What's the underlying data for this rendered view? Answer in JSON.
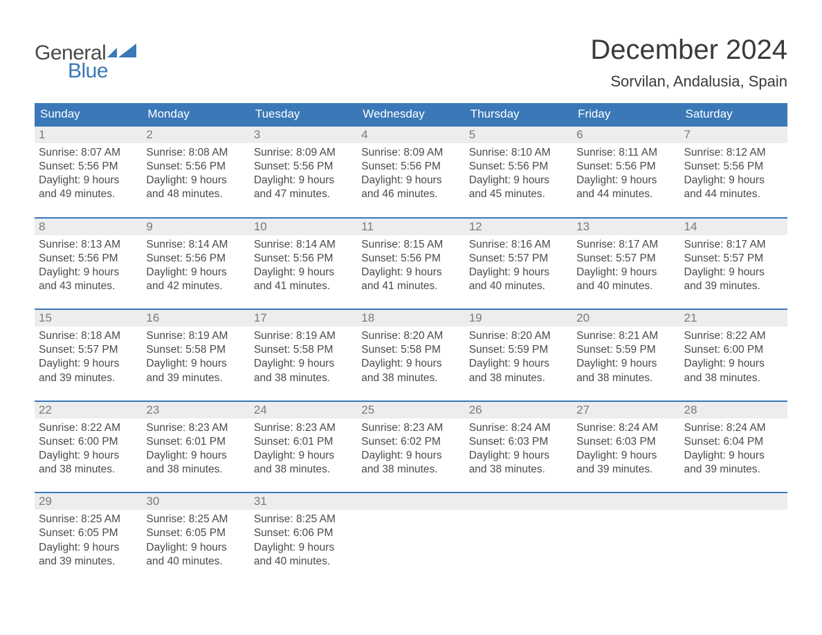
{
  "logo": {
    "word1": "General",
    "word2": "Blue",
    "color1": "#4a4a4a",
    "color2": "#3a78b8",
    "shape_color": "#3a78b8"
  },
  "title": "December 2024",
  "location": "Sorvilan, Andalusia, Spain",
  "colors": {
    "header_bg": "#3a78b8",
    "header_text": "#ffffff",
    "daynum_bg": "#ededed",
    "daynum_text": "#7a7a7a",
    "body_text": "#4a4a4a",
    "row_border": "#3a78b8",
    "page_bg": "#ffffff"
  },
  "typography": {
    "title_fontsize": 40,
    "location_fontsize": 22,
    "header_fontsize": 17,
    "daynum_fontsize": 17,
    "cell_fontsize": 15.5,
    "logo_fontsize": 30
  },
  "layout": {
    "columns": 7,
    "rows": 5,
    "col_width_pct": 14.28
  },
  "day_headers": [
    "Sunday",
    "Monday",
    "Tuesday",
    "Wednesday",
    "Thursday",
    "Friday",
    "Saturday"
  ],
  "weeks": [
    [
      {
        "n": "1",
        "sr": "Sunrise: 8:07 AM",
        "ss": "Sunset: 5:56 PM",
        "d1": "Daylight: 9 hours",
        "d2": "and 49 minutes."
      },
      {
        "n": "2",
        "sr": "Sunrise: 8:08 AM",
        "ss": "Sunset: 5:56 PM",
        "d1": "Daylight: 9 hours",
        "d2": "and 48 minutes."
      },
      {
        "n": "3",
        "sr": "Sunrise: 8:09 AM",
        "ss": "Sunset: 5:56 PM",
        "d1": "Daylight: 9 hours",
        "d2": "and 47 minutes."
      },
      {
        "n": "4",
        "sr": "Sunrise: 8:09 AM",
        "ss": "Sunset: 5:56 PM",
        "d1": "Daylight: 9 hours",
        "d2": "and 46 minutes."
      },
      {
        "n": "5",
        "sr": "Sunrise: 8:10 AM",
        "ss": "Sunset: 5:56 PM",
        "d1": "Daylight: 9 hours",
        "d2": "and 45 minutes."
      },
      {
        "n": "6",
        "sr": "Sunrise: 8:11 AM",
        "ss": "Sunset: 5:56 PM",
        "d1": "Daylight: 9 hours",
        "d2": "and 44 minutes."
      },
      {
        "n": "7",
        "sr": "Sunrise: 8:12 AM",
        "ss": "Sunset: 5:56 PM",
        "d1": "Daylight: 9 hours",
        "d2": "and 44 minutes."
      }
    ],
    [
      {
        "n": "8",
        "sr": "Sunrise: 8:13 AM",
        "ss": "Sunset: 5:56 PM",
        "d1": "Daylight: 9 hours",
        "d2": "and 43 minutes."
      },
      {
        "n": "9",
        "sr": "Sunrise: 8:14 AM",
        "ss": "Sunset: 5:56 PM",
        "d1": "Daylight: 9 hours",
        "d2": "and 42 minutes."
      },
      {
        "n": "10",
        "sr": "Sunrise: 8:14 AM",
        "ss": "Sunset: 5:56 PM",
        "d1": "Daylight: 9 hours",
        "d2": "and 41 minutes."
      },
      {
        "n": "11",
        "sr": "Sunrise: 8:15 AM",
        "ss": "Sunset: 5:56 PM",
        "d1": "Daylight: 9 hours",
        "d2": "and 41 minutes."
      },
      {
        "n": "12",
        "sr": "Sunrise: 8:16 AM",
        "ss": "Sunset: 5:57 PM",
        "d1": "Daylight: 9 hours",
        "d2": "and 40 minutes."
      },
      {
        "n": "13",
        "sr": "Sunrise: 8:17 AM",
        "ss": "Sunset: 5:57 PM",
        "d1": "Daylight: 9 hours",
        "d2": "and 40 minutes."
      },
      {
        "n": "14",
        "sr": "Sunrise: 8:17 AM",
        "ss": "Sunset: 5:57 PM",
        "d1": "Daylight: 9 hours",
        "d2": "and 39 minutes."
      }
    ],
    [
      {
        "n": "15",
        "sr": "Sunrise: 8:18 AM",
        "ss": "Sunset: 5:57 PM",
        "d1": "Daylight: 9 hours",
        "d2": "and 39 minutes."
      },
      {
        "n": "16",
        "sr": "Sunrise: 8:19 AM",
        "ss": "Sunset: 5:58 PM",
        "d1": "Daylight: 9 hours",
        "d2": "and 39 minutes."
      },
      {
        "n": "17",
        "sr": "Sunrise: 8:19 AM",
        "ss": "Sunset: 5:58 PM",
        "d1": "Daylight: 9 hours",
        "d2": "and 38 minutes."
      },
      {
        "n": "18",
        "sr": "Sunrise: 8:20 AM",
        "ss": "Sunset: 5:58 PM",
        "d1": "Daylight: 9 hours",
        "d2": "and 38 minutes."
      },
      {
        "n": "19",
        "sr": "Sunrise: 8:20 AM",
        "ss": "Sunset: 5:59 PM",
        "d1": "Daylight: 9 hours",
        "d2": "and 38 minutes."
      },
      {
        "n": "20",
        "sr": "Sunrise: 8:21 AM",
        "ss": "Sunset: 5:59 PM",
        "d1": "Daylight: 9 hours",
        "d2": "and 38 minutes."
      },
      {
        "n": "21",
        "sr": "Sunrise: 8:22 AM",
        "ss": "Sunset: 6:00 PM",
        "d1": "Daylight: 9 hours",
        "d2": "and 38 minutes."
      }
    ],
    [
      {
        "n": "22",
        "sr": "Sunrise: 8:22 AM",
        "ss": "Sunset: 6:00 PM",
        "d1": "Daylight: 9 hours",
        "d2": "and 38 minutes."
      },
      {
        "n": "23",
        "sr": "Sunrise: 8:23 AM",
        "ss": "Sunset: 6:01 PM",
        "d1": "Daylight: 9 hours",
        "d2": "and 38 minutes."
      },
      {
        "n": "24",
        "sr": "Sunrise: 8:23 AM",
        "ss": "Sunset: 6:01 PM",
        "d1": "Daylight: 9 hours",
        "d2": "and 38 minutes."
      },
      {
        "n": "25",
        "sr": "Sunrise: 8:23 AM",
        "ss": "Sunset: 6:02 PM",
        "d1": "Daylight: 9 hours",
        "d2": "and 38 minutes."
      },
      {
        "n": "26",
        "sr": "Sunrise: 8:24 AM",
        "ss": "Sunset: 6:03 PM",
        "d1": "Daylight: 9 hours",
        "d2": "and 38 minutes."
      },
      {
        "n": "27",
        "sr": "Sunrise: 8:24 AM",
        "ss": "Sunset: 6:03 PM",
        "d1": "Daylight: 9 hours",
        "d2": "and 39 minutes."
      },
      {
        "n": "28",
        "sr": "Sunrise: 8:24 AM",
        "ss": "Sunset: 6:04 PM",
        "d1": "Daylight: 9 hours",
        "d2": "and 39 minutes."
      }
    ],
    [
      {
        "n": "29",
        "sr": "Sunrise: 8:25 AM",
        "ss": "Sunset: 6:05 PM",
        "d1": "Daylight: 9 hours",
        "d2": "and 39 minutes."
      },
      {
        "n": "30",
        "sr": "Sunrise: 8:25 AM",
        "ss": "Sunset: 6:05 PM",
        "d1": "Daylight: 9 hours",
        "d2": "and 40 minutes."
      },
      {
        "n": "31",
        "sr": "Sunrise: 8:25 AM",
        "ss": "Sunset: 6:06 PM",
        "d1": "Daylight: 9 hours",
        "d2": "and 40 minutes."
      },
      null,
      null,
      null,
      null
    ]
  ]
}
